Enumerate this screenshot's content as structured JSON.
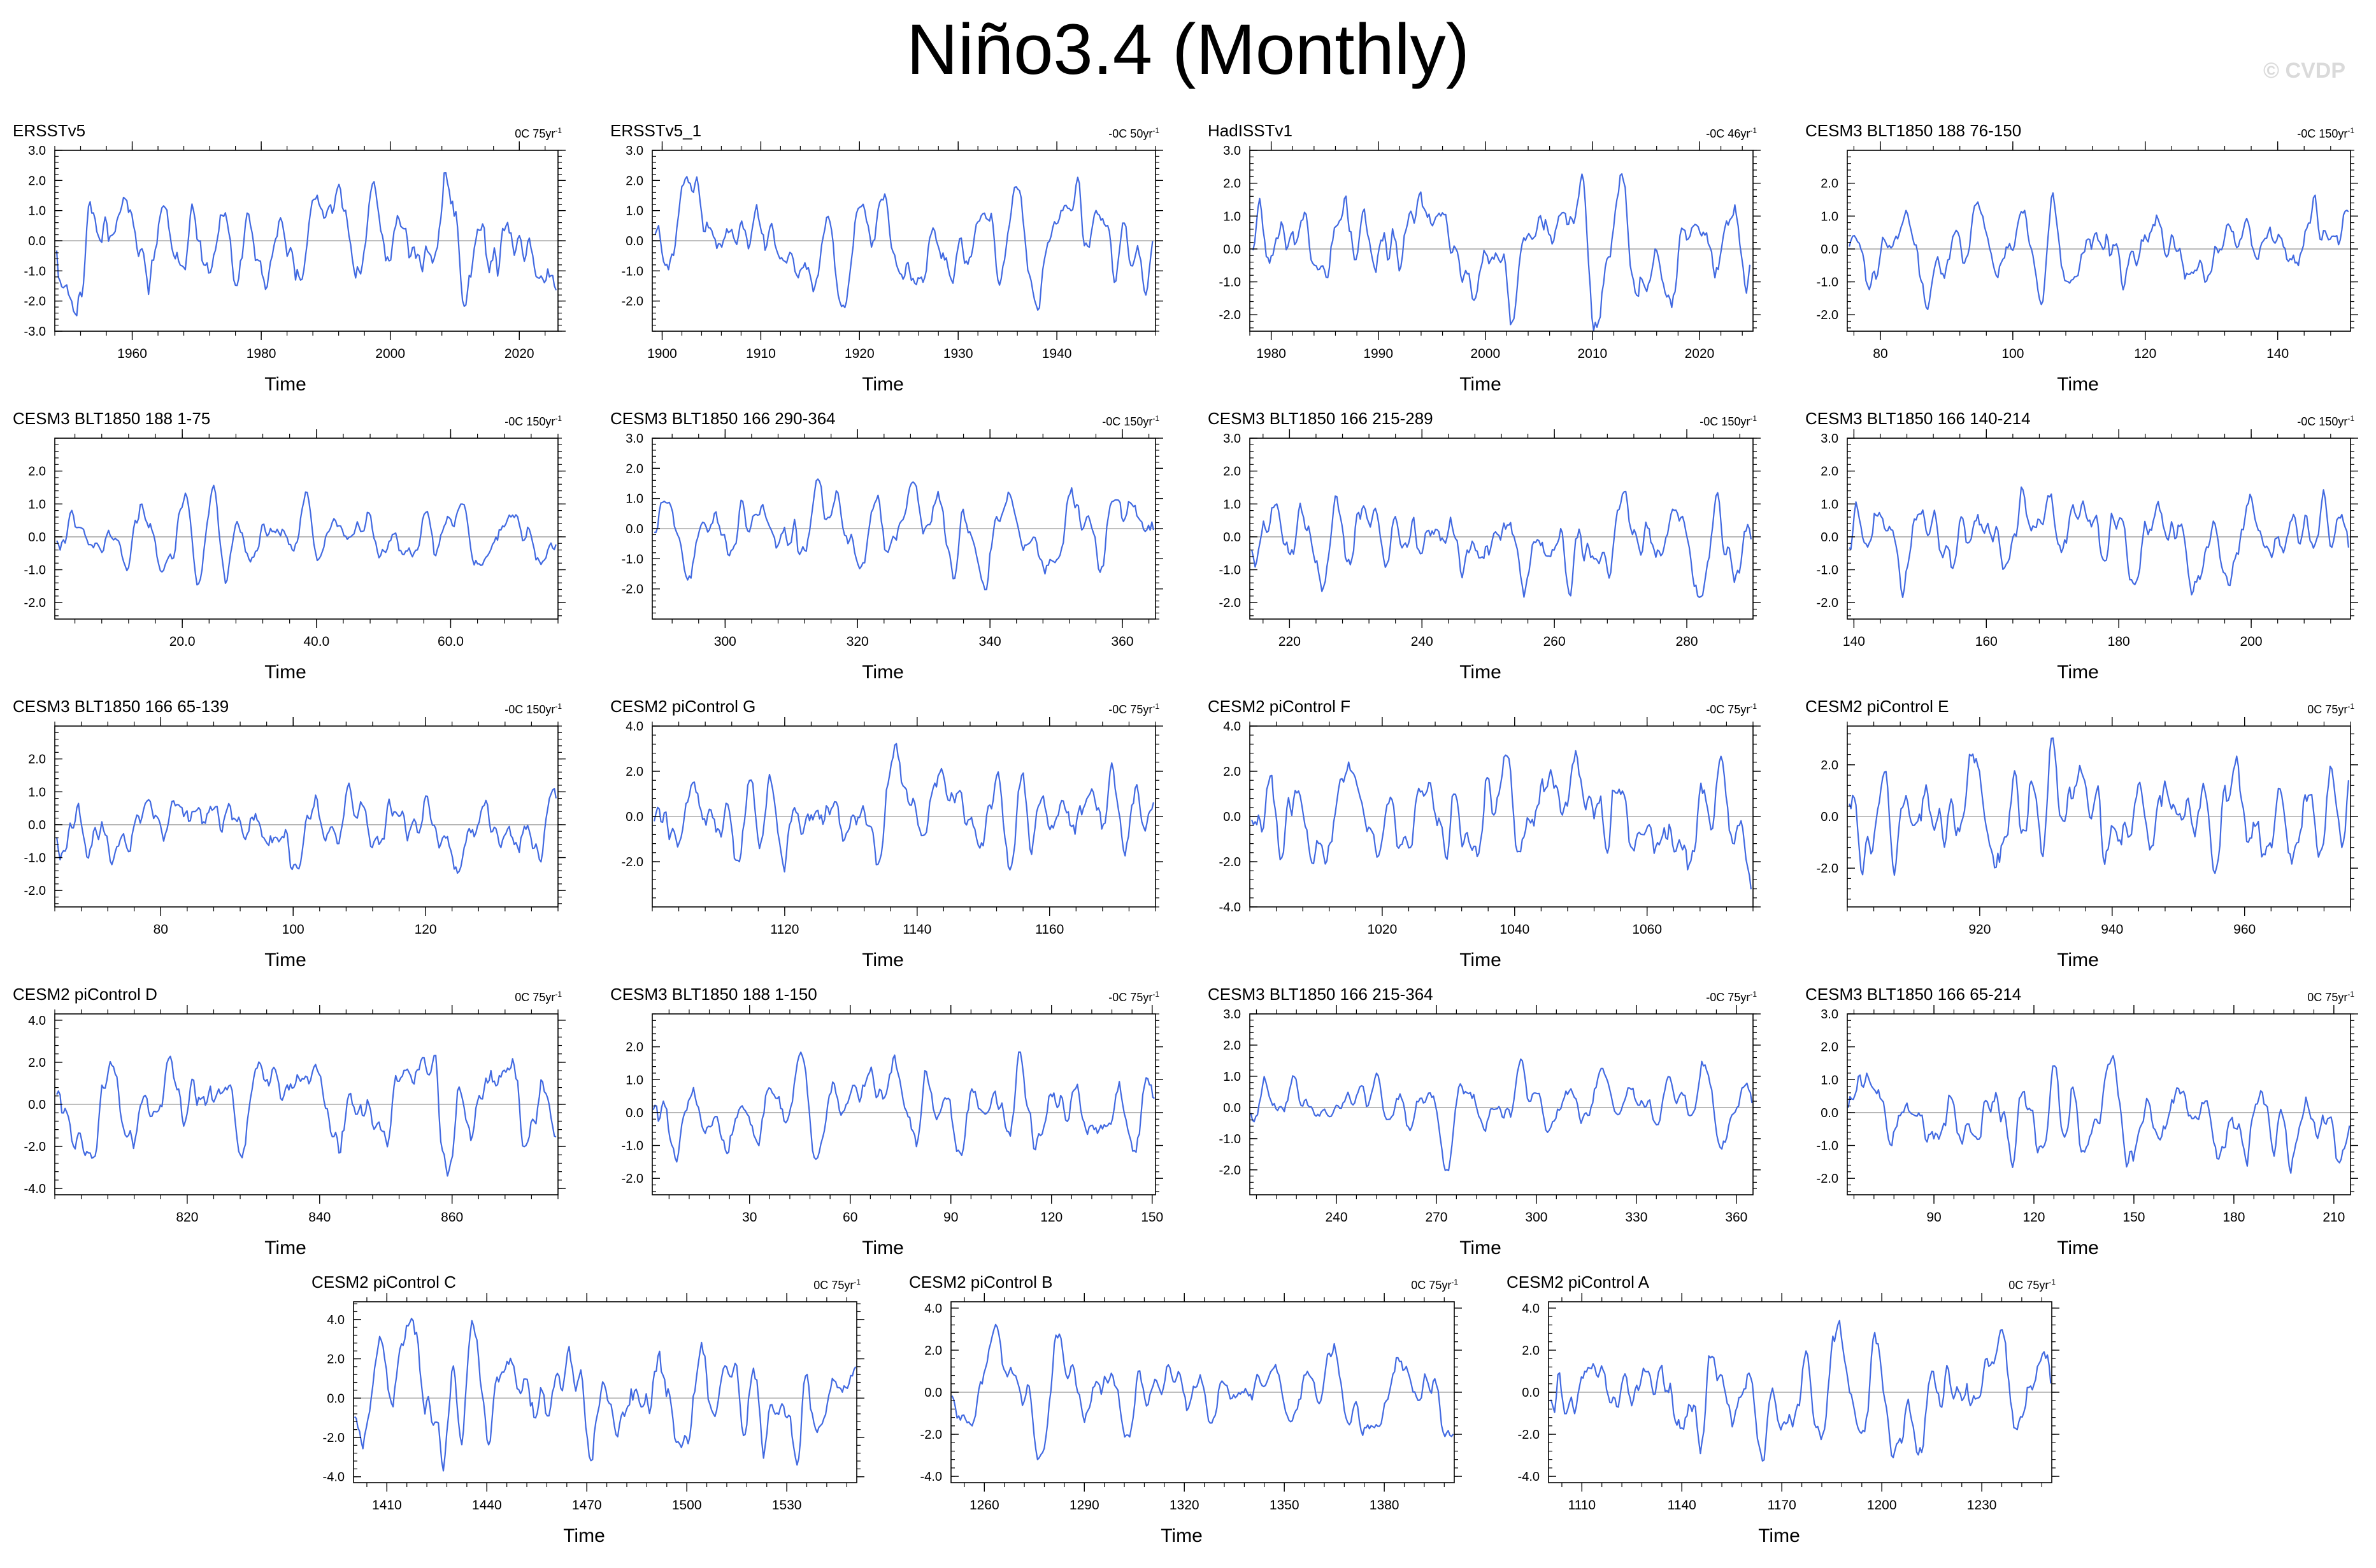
{
  "title": "Niño3.4 (Monthly)",
  "watermark": "© CVDP",
  "colors": {
    "series": "#4169e1",
    "zero_line": "#aaaaaa",
    "frame": "#000000"
  },
  "chart_data": [
    {
      "type": "line",
      "title": "ERSSTv5",
      "trend": "0C 75yr",
      "trend_unit_exp": "-1",
      "xlabel": "Time",
      "xlim": [
        1948,
        2026
      ],
      "xticks": [
        "1960",
        "1980",
        "2000",
        "2020"
      ],
      "xtick_values": [
        1960,
        1980,
        2000,
        2020
      ],
      "ylim": [
        -3,
        3
      ],
      "yticks": [
        "3.0",
        "2.0",
        "1.0",
        "0.0",
        "-1.0",
        "-2.0",
        "-3.0"
      ],
      "ytick_values": [
        3,
        2,
        1,
        0,
        -1,
        -2,
        -3
      ],
      "amplitude": 2.7,
      "grid": false
    },
    {
      "type": "line",
      "title": "ERSSTv5_1",
      "trend": "-0C 50yr",
      "trend_unit_exp": "-1",
      "xlabel": "Time",
      "xlim": [
        1899,
        1950
      ],
      "xticks": [
        "1900",
        "1910",
        "1920",
        "1930",
        "1940"
      ],
      "xtick_values": [
        1900,
        1910,
        1920,
        1930,
        1940
      ],
      "ylim": [
        -3,
        3
      ],
      "yticks": [
        "3.0",
        "2.0",
        "1.0",
        "0.0",
        "-1.0",
        "-2.0"
      ],
      "ytick_values": [
        3,
        2,
        1,
        0,
        -1,
        -2
      ],
      "amplitude": 2.5,
      "grid": false
    },
    {
      "type": "line",
      "title": "HadISSTv1",
      "trend": "-0C 46yr",
      "trend_unit_exp": "-1",
      "xlabel": "Time",
      "xlim": [
        1978,
        2025
      ],
      "xticks": [
        "1980",
        "1990",
        "2000",
        "2010",
        "2020"
      ],
      "xtick_values": [
        1980,
        1990,
        2000,
        2010,
        2020
      ],
      "ylim": [
        -2.5,
        3
      ],
      "yticks": [
        "3.0",
        "2.0",
        "1.0",
        "0.0",
        "-1.0",
        "-2.0"
      ],
      "ytick_values": [
        3,
        2,
        1,
        0,
        -1,
        -2
      ],
      "amplitude": 2.7,
      "grid": false
    },
    {
      "type": "line",
      "title": "CESM3 BLT1850 188 76-150",
      "trend": "-0C 150yr",
      "trend_unit_exp": "-1",
      "xlabel": "Time",
      "xlim": [
        75,
        151
      ],
      "xticks": [
        "80",
        "100",
        "120",
        "140"
      ],
      "xtick_values": [
        80,
        100,
        120,
        140
      ],
      "ylim": [
        -2.5,
        3
      ],
      "yticks": [
        "2.0",
        "1.0",
        "0.0",
        "-1.0",
        "-2.0"
      ],
      "ytick_values": [
        2,
        1,
        0,
        -1,
        -2
      ],
      "amplitude": 2.0,
      "grid": false
    },
    {
      "type": "line",
      "title": "CESM3 BLT1850 188 1-75",
      "trend": "-0C 150yr",
      "trend_unit_exp": "-1",
      "xlabel": "Time",
      "xlim": [
        1,
        76
      ],
      "xticks": [
        "20.0",
        "40.0",
        "60.0"
      ],
      "xtick_values": [
        20,
        40,
        60
      ],
      "ylim": [
        -2.5,
        3
      ],
      "yticks": [
        "2.0",
        "1.0",
        "0.0",
        "-1.0",
        "-2.0"
      ],
      "ytick_values": [
        2,
        1,
        0,
        -1,
        -2
      ],
      "amplitude": 1.7,
      "grid": false
    },
    {
      "type": "line",
      "title": "CESM3 BLT1850 166 290-364",
      "trend": "-0C 150yr",
      "trend_unit_exp": "-1",
      "xlabel": "Time",
      "xlim": [
        289,
        365
      ],
      "xticks": [
        "300",
        "320",
        "340",
        "360"
      ],
      "xtick_values": [
        300,
        320,
        340,
        360
      ],
      "ylim": [
        -3,
        3
      ],
      "yticks": [
        "3.0",
        "2.0",
        "1.0",
        "0.0",
        "-1.0",
        "-2.0"
      ],
      "ytick_values": [
        3,
        2,
        1,
        0,
        -1,
        -2
      ],
      "amplitude": 2.2,
      "grid": false
    },
    {
      "type": "line",
      "title": "CESM3 BLT1850 166 215-289",
      "trend": "-0C 150yr",
      "trend_unit_exp": "-1",
      "xlabel": "Time",
      "xlim": [
        214,
        290
      ],
      "xticks": [
        "220",
        "240",
        "260",
        "280"
      ],
      "xtick_values": [
        220,
        240,
        260,
        280
      ],
      "ylim": [
        -2.5,
        3
      ],
      "yticks": [
        "3.0",
        "2.0",
        "1.0",
        "0.0",
        "-1.0",
        "-2.0"
      ],
      "ytick_values": [
        3,
        2,
        1,
        0,
        -1,
        -2
      ],
      "amplitude": 2.0,
      "grid": false
    },
    {
      "type": "line",
      "title": "CESM3 BLT1850 166 140-214",
      "trend": "-0C 150yr",
      "trend_unit_exp": "-1",
      "xlabel": "Time",
      "xlim": [
        139,
        215
      ],
      "xticks": [
        "140",
        "160",
        "180",
        "200"
      ],
      "xtick_values": [
        140,
        160,
        180,
        200
      ],
      "ylim": [
        -2.5,
        3
      ],
      "yticks": [
        "3.0",
        "2.0",
        "1.0",
        "0.0",
        "-1.0",
        "-2.0"
      ],
      "ytick_values": [
        3,
        2,
        1,
        0,
        -1,
        -2
      ],
      "amplitude": 2.0,
      "grid": false
    },
    {
      "type": "line",
      "title": "CESM3 BLT1850 166 65-139",
      "trend": "-0C 150yr",
      "trend_unit_exp": "-1",
      "xlabel": "Time",
      "xlim": [
        64,
        140
      ],
      "xticks": [
        "80",
        "100",
        "120"
      ],
      "xtick_values": [
        80,
        100,
        120
      ],
      "ylim": [
        -2.5,
        3
      ],
      "yticks": [
        "2.0",
        "1.0",
        "0.0",
        "-1.0",
        "-2.0"
      ],
      "ytick_values": [
        2,
        1,
        0,
        -1,
        -2
      ],
      "amplitude": 1.6,
      "grid": false
    },
    {
      "type": "line",
      "title": "CESM2 piControl G",
      "trend": "-0C 75yr",
      "trend_unit_exp": "-1",
      "xlabel": "Time",
      "xlim": [
        1100,
        1176
      ],
      "xticks": [
        "1120",
        "1140",
        "1160"
      ],
      "xtick_values": [
        1120,
        1140,
        1160
      ],
      "ylim": [
        -4,
        4
      ],
      "yticks": [
        "4.0",
        "2.0",
        "0.0",
        "-2.0"
      ],
      "ytick_values": [
        4,
        2,
        0,
        -2
      ],
      "amplitude": 3.5,
      "grid": false
    },
    {
      "type": "line",
      "title": "CESM2 piControl F",
      "trend": "-0C 75yr",
      "trend_unit_exp": "-1",
      "xlabel": "Time",
      "xlim": [
        1000,
        1076
      ],
      "xticks": [
        "1020",
        "1040",
        "1060"
      ],
      "xtick_values": [
        1020,
        1040,
        1060
      ],
      "ylim": [
        -4,
        4
      ],
      "yticks": [
        "4.0",
        "2.0",
        "0.0",
        "-2.0",
        "-4.0"
      ],
      "ytick_values": [
        4,
        2,
        0,
        -2,
        -4
      ],
      "amplitude": 3.5,
      "grid": false
    },
    {
      "type": "line",
      "title": "CESM2 piControl E",
      "trend": "0C 75yr",
      "trend_unit_exp": "-1",
      "xlabel": "Time",
      "xlim": [
        900,
        976
      ],
      "xticks": [
        "920",
        "940",
        "960"
      ],
      "xtick_values": [
        920,
        940,
        960
      ],
      "ylim": [
        -3.5,
        3.5
      ],
      "yticks": [
        "2.0",
        "0.0",
        "-2.0"
      ],
      "ytick_values": [
        2,
        0,
        -2
      ],
      "amplitude": 3.3,
      "grid": false
    },
    {
      "type": "line",
      "title": "CESM2 piControl D",
      "trend": "0C 75yr",
      "trend_unit_exp": "-1",
      "xlabel": "Time",
      "xlim": [
        800,
        876
      ],
      "xticks": [
        "820",
        "840",
        "860"
      ],
      "xtick_values": [
        820,
        840,
        860
      ],
      "ylim": [
        -4.3,
        4.3
      ],
      "yticks": [
        "4.0",
        "2.0",
        "0.0",
        "-2.0",
        "-4.0"
      ],
      "ytick_values": [
        4,
        2,
        0,
        -2,
        -4
      ],
      "amplitude": 3.7,
      "grid": false
    },
    {
      "type": "line",
      "title": "CESM3 BLT1850 188 1-150",
      "trend": "-0C 75yr",
      "trend_unit_exp": "-1",
      "xlabel": "Time",
      "xlim": [
        1,
        151
      ],
      "xticks": [
        "30",
        "60",
        "90",
        "120",
        "150"
      ],
      "xtick_values": [
        30,
        60,
        90,
        120,
        150
      ],
      "ylim": [
        -2.5,
        3
      ],
      "yticks": [
        "2.0",
        "1.0",
        "0.0",
        "-1.0",
        "-2.0"
      ],
      "ytick_values": [
        2,
        1,
        0,
        -1,
        -2
      ],
      "amplitude": 2.0,
      "grid": false
    },
    {
      "type": "line",
      "title": "CESM3 BLT1850 166 215-364",
      "trend": "-0C 75yr",
      "trend_unit_exp": "-1",
      "xlabel": "Time",
      "xlim": [
        214,
        365
      ],
      "xticks": [
        "240",
        "270",
        "300",
        "330",
        "360"
      ],
      "xtick_values": [
        240,
        270,
        300,
        330,
        360
      ],
      "ylim": [
        -2.8,
        3
      ],
      "yticks": [
        "3.0",
        "2.0",
        "1.0",
        "0.0",
        "-1.0",
        "-2.0"
      ],
      "ytick_values": [
        3,
        2,
        1,
        0,
        -1,
        -2
      ],
      "amplitude": 2.2,
      "grid": false
    },
    {
      "type": "line",
      "title": "CESM3 BLT1850 166 65-214",
      "trend": "0C 75yr",
      "trend_unit_exp": "-1",
      "xlabel": "Time",
      "xlim": [
        64,
        215
      ],
      "xticks": [
        "90",
        "120",
        "150",
        "180",
        "210"
      ],
      "xtick_values": [
        90,
        120,
        150,
        180,
        210
      ],
      "ylim": [
        -2.5,
        3
      ],
      "yticks": [
        "3.0",
        "2.0",
        "1.0",
        "0.0",
        "-1.0",
        "-2.0"
      ],
      "ytick_values": [
        3,
        2,
        1,
        0,
        -1,
        -2
      ],
      "amplitude": 2.0,
      "grid": false
    },
    {
      "type": "line",
      "title": "CESM2 piControl C",
      "trend": "0C 75yr",
      "trend_unit_exp": "-1",
      "xlabel": "Time",
      "xlim": [
        1400,
        1551
      ],
      "xticks": [
        "1410",
        "1440",
        "1470",
        "1500",
        "1530"
      ],
      "xtick_values": [
        1410,
        1440,
        1470,
        1500,
        1530
      ],
      "ylim": [
        -4.3,
        4.9
      ],
      "yticks": [
        "4.0",
        "2.0",
        "0.0",
        "-2.0",
        "-4.0"
      ],
      "ytick_values": [
        4,
        2,
        0,
        -2,
        -4
      ],
      "amplitude": 4.4,
      "grid": false
    },
    {
      "type": "line",
      "title": "CESM2 piControl B",
      "trend": "0C 75yr",
      "trend_unit_exp": "-1",
      "xlabel": "Time",
      "xlim": [
        1250,
        1401
      ],
      "xticks": [
        "1260",
        "1290",
        "1320",
        "1350",
        "1380"
      ],
      "xtick_values": [
        1260,
        1290,
        1320,
        1350,
        1380
      ],
      "ylim": [
        -4.3,
        4.3
      ],
      "yticks": [
        "4.0",
        "2.0",
        "0.0",
        "-2.0",
        "-4.0"
      ],
      "ytick_values": [
        4,
        2,
        0,
        -2,
        -4
      ],
      "amplitude": 3.5,
      "grid": false
    },
    {
      "type": "line",
      "title": "CESM2 piControl A",
      "trend": "0C 75yr",
      "trend_unit_exp": "-1",
      "xlabel": "Time",
      "xlim": [
        1100,
        1251
      ],
      "xticks": [
        "1110",
        "1140",
        "1170",
        "1200",
        "1230"
      ],
      "xtick_values": [
        1110,
        1140,
        1170,
        1200,
        1230
      ],
      "ylim": [
        -4.3,
        4.3
      ],
      "yticks": [
        "4.0",
        "2.0",
        "0.0",
        "-2.0",
        "-4.0"
      ],
      "ytick_values": [
        4,
        2,
        0,
        -2,
        -4
      ],
      "amplitude": 3.7,
      "grid": false
    }
  ]
}
